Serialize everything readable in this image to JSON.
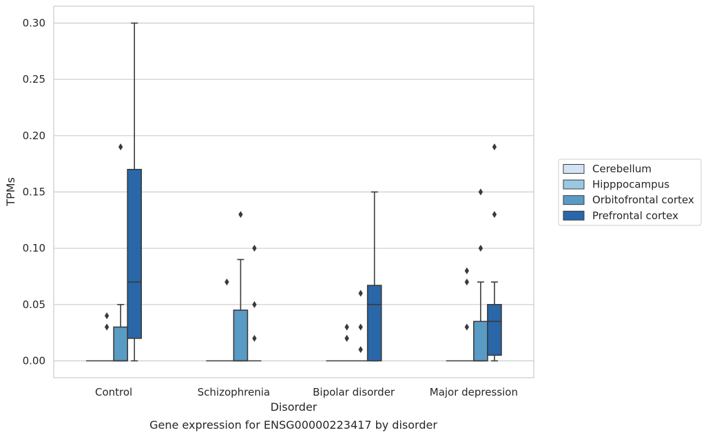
{
  "chart_data": {
    "type": "box",
    "xlabel": "Disorder",
    "ylabel": "TPMs",
    "caption": "Gene expression for ENSG00000223417 by disorder",
    "ylim": [
      -0.015,
      0.315
    ],
    "yticks": [
      0.0,
      0.05,
      0.1,
      0.15,
      0.2,
      0.25,
      0.3
    ],
    "ytick_labels": [
      "0.00",
      "0.05",
      "0.10",
      "0.15",
      "0.20",
      "0.25",
      "0.30"
    ],
    "grid": "horizontal",
    "legend_position": "right",
    "categories": [
      "Control",
      "Schizophrenia",
      "Bipolar disorder",
      "Major depression"
    ],
    "series": [
      {
        "name": "Cerebellum",
        "color": "#d2e3f3",
        "boxes": [
          {
            "q1": 0,
            "median": 0,
            "q3": 0,
            "whisker_low": 0,
            "whisker_high": 0,
            "outliers": []
          },
          {
            "q1": 0,
            "median": 0,
            "q3": 0,
            "whisker_low": 0,
            "whisker_high": 0,
            "outliers": []
          },
          {
            "q1": 0,
            "median": 0,
            "q3": 0,
            "whisker_low": 0,
            "whisker_high": 0,
            "outliers": []
          },
          {
            "q1": 0,
            "median": 0,
            "q3": 0,
            "whisker_low": 0,
            "whisker_high": 0,
            "outliers": []
          }
        ]
      },
      {
        "name": "Hipppocampus",
        "color": "#9ac8e0",
        "boxes": [
          {
            "q1": 0,
            "median": 0,
            "q3": 0,
            "whisker_low": 0,
            "whisker_high": 0,
            "outliers": [
              0.03,
              0.04
            ]
          },
          {
            "q1": 0,
            "median": 0,
            "q3": 0,
            "whisker_low": 0,
            "whisker_high": 0,
            "outliers": [
              0.07
            ]
          },
          {
            "q1": 0,
            "median": 0,
            "q3": 0,
            "whisker_low": 0,
            "whisker_high": 0,
            "outliers": [
              0.02,
              0.02,
              0.03
            ]
          },
          {
            "q1": 0,
            "median": 0,
            "q3": 0,
            "whisker_low": 0,
            "whisker_high": 0,
            "outliers": [
              0.03,
              0.07,
              0.08
            ]
          }
        ]
      },
      {
        "name": "Orbitofrontal cortex",
        "color": "#5a9bc6",
        "boxes": [
          {
            "q1": 0,
            "median": 0,
            "q3": 0.03,
            "whisker_low": 0,
            "whisker_high": 0.05,
            "outliers": [
              0.19
            ]
          },
          {
            "q1": 0,
            "median": 0,
            "q3": 0.045,
            "whisker_low": 0,
            "whisker_high": 0.09,
            "outliers": [
              0.13
            ]
          },
          {
            "q1": 0,
            "median": 0,
            "q3": 0,
            "whisker_low": 0,
            "whisker_high": 0,
            "outliers": [
              0.01,
              0.03,
              0.06
            ]
          },
          {
            "q1": 0,
            "median": 0,
            "q3": 0.035,
            "whisker_low": 0,
            "whisker_high": 0.07,
            "outliers": [
              0.1,
              0.15
            ]
          }
        ]
      },
      {
        "name": "Prefrontal cortex",
        "color": "#2967a8",
        "boxes": [
          {
            "q1": 0.02,
            "median": 0.07,
            "q3": 0.17,
            "whisker_low": 0,
            "whisker_high": 0.3,
            "outliers": []
          },
          {
            "q1": 0,
            "median": 0,
            "q3": 0,
            "whisker_low": 0,
            "whisker_high": 0,
            "outliers": [
              0.02,
              0.05,
              0.1
            ]
          },
          {
            "q1": 0,
            "median": 0.05,
            "q3": 0.067,
            "whisker_low": 0,
            "whisker_high": 0.15,
            "outliers": []
          },
          {
            "q1": 0.005,
            "median": 0.035,
            "q3": 0.05,
            "whisker_low": 0,
            "whisker_high": 0.07,
            "outliers": [
              0.13,
              0.19
            ]
          }
        ]
      }
    ]
  }
}
